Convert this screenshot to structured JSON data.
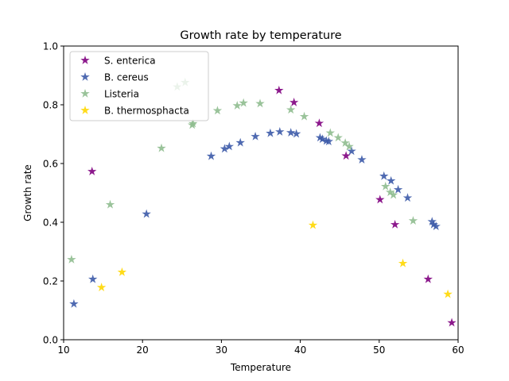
{
  "chart_data": {
    "type": "scatter",
    "title": "Growth rate by temperature",
    "xlabel": "Temperature",
    "ylabel": "Growth rate",
    "xlim": [
      10,
      60
    ],
    "ylim": [
      0.0,
      1.0
    ],
    "xticks": [
      10,
      20,
      30,
      40,
      50,
      60
    ],
    "yticks": [
      0.0,
      0.2,
      0.4,
      0.6,
      0.8,
      1.0
    ],
    "ytick_labels": [
      "0.0",
      "0.2",
      "0.4",
      "0.6",
      "0.8",
      "1.0"
    ],
    "grid": false,
    "legend": "top-left",
    "marker": "star",
    "series": [
      {
        "name": "S. enterica",
        "color": "#800080",
        "points": [
          [
            13.6,
            0.573
          ],
          [
            37.3,
            0.849
          ],
          [
            39.2,
            0.808
          ],
          [
            42.4,
            0.737
          ],
          [
            45.8,
            0.626
          ],
          [
            50.1,
            0.477
          ],
          [
            52.0,
            0.392
          ],
          [
            56.2,
            0.206
          ],
          [
            59.2,
            0.058
          ]
        ]
      },
      {
        "name": "B. cereus",
        "color": "#3c5aa8",
        "points": [
          [
            11.3,
            0.122
          ],
          [
            13.7,
            0.206
          ],
          [
            20.5,
            0.428
          ],
          [
            28.7,
            0.625
          ],
          [
            30.4,
            0.65
          ],
          [
            31.0,
            0.658
          ],
          [
            32.4,
            0.671
          ],
          [
            34.3,
            0.692
          ],
          [
            36.2,
            0.703
          ],
          [
            37.4,
            0.708
          ],
          [
            38.8,
            0.705
          ],
          [
            39.5,
            0.701
          ],
          [
            42.5,
            0.688
          ],
          [
            42.8,
            0.683
          ],
          [
            43.3,
            0.677
          ],
          [
            43.6,
            0.675
          ],
          [
            46.5,
            0.642
          ],
          [
            47.8,
            0.613
          ],
          [
            50.6,
            0.557
          ],
          [
            51.5,
            0.541
          ],
          [
            52.4,
            0.511
          ],
          [
            53.6,
            0.483
          ],
          [
            56.7,
            0.402
          ],
          [
            56.9,
            0.392
          ],
          [
            57.2,
            0.386
          ]
        ]
      },
      {
        "name": "Listeria",
        "color": "#8fbc8f",
        "points": [
          [
            11.0,
            0.273
          ],
          [
            15.9,
            0.46
          ],
          [
            22.4,
            0.652
          ],
          [
            24.4,
            0.861
          ],
          [
            25.4,
            0.876
          ],
          [
            26.3,
            0.731
          ],
          [
            26.4,
            0.736
          ],
          [
            29.5,
            0.78
          ],
          [
            32.0,
            0.797
          ],
          [
            32.8,
            0.806
          ],
          [
            34.9,
            0.804
          ],
          [
            38.8,
            0.783
          ],
          [
            40.5,
            0.76
          ],
          [
            43.8,
            0.704
          ],
          [
            44.8,
            0.688
          ],
          [
            45.7,
            0.67
          ],
          [
            46.2,
            0.658
          ],
          [
            50.8,
            0.522
          ],
          [
            51.4,
            0.502
          ],
          [
            51.8,
            0.493
          ],
          [
            54.3,
            0.405
          ]
        ]
      },
      {
        "name": "B. thermosphacta",
        "color": "#ffd700",
        "points": [
          [
            14.8,
            0.178
          ],
          [
            17.4,
            0.23
          ],
          [
            41.6,
            0.39
          ],
          [
            53.0,
            0.26
          ],
          [
            58.7,
            0.155
          ]
        ]
      }
    ]
  }
}
